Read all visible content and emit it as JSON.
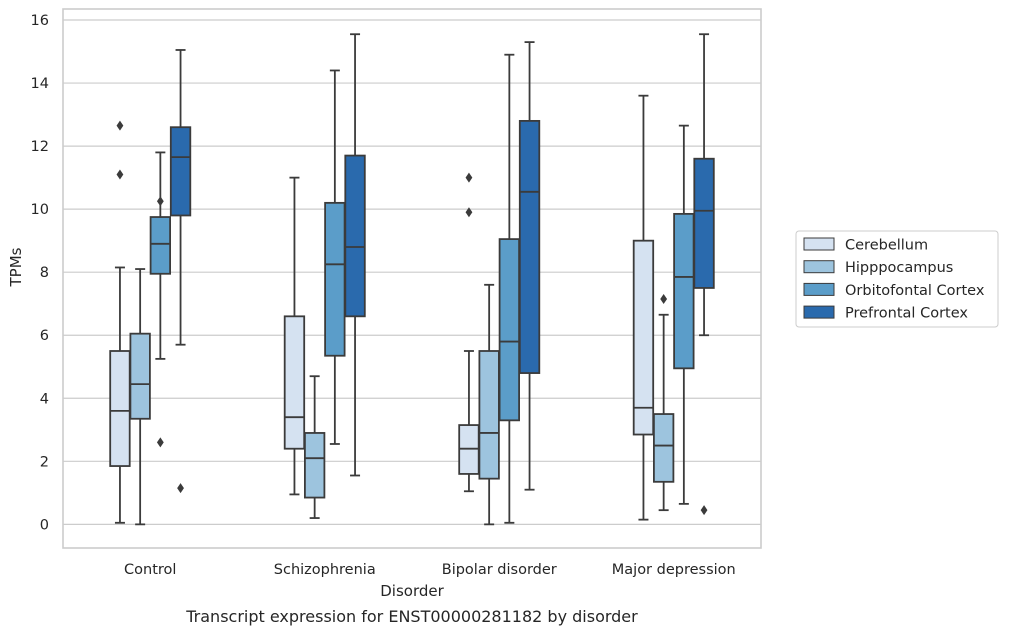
{
  "chart_data": {
    "type": "box",
    "title": "",
    "caption": "Transcript expression for ENST00000281182 by disorder",
    "xlabel": "Disorder",
    "ylabel": "TPMs",
    "ylim": [
      -0.75,
      16.35
    ],
    "yticks": [
      0,
      2,
      4,
      6,
      8,
      10,
      12,
      14,
      16
    ],
    "grid": "horizontal",
    "legend_position": "right",
    "categories": [
      "Control",
      "Schizophrenia",
      "Bipolar disorder",
      "Major depression"
    ],
    "series": [
      {
        "name": "Cerebellum",
        "color": "#d5e2f1",
        "boxes": [
          {
            "whisker_low": 0.05,
            "q1": 1.85,
            "median": 3.6,
            "q3": 5.5,
            "whisker_high": 8.15,
            "outliers": [
              11.1,
              12.65
            ]
          },
          {
            "whisker_low": 0.95,
            "q1": 2.4,
            "median": 3.4,
            "q3": 6.6,
            "whisker_high": 11.0,
            "outliers": []
          },
          {
            "whisker_low": 1.05,
            "q1": 1.6,
            "median": 2.4,
            "q3": 3.15,
            "whisker_high": 5.5,
            "outliers": [
              9.9,
              11.0
            ]
          },
          {
            "whisker_low": 0.15,
            "q1": 2.85,
            "median": 3.7,
            "q3": 9.0,
            "whisker_high": 13.6,
            "outliers": []
          }
        ]
      },
      {
        "name": "Hipppocampus",
        "color": "#9dc4de",
        "boxes": [
          {
            "whisker_low": 0.0,
            "q1": 3.35,
            "median": 4.45,
            "q3": 6.05,
            "whisker_high": 8.1,
            "outliers": []
          },
          {
            "whisker_low": 0.2,
            "q1": 0.85,
            "median": 2.1,
            "q3": 2.9,
            "whisker_high": 4.7,
            "outliers": []
          },
          {
            "whisker_low": 0.0,
            "q1": 1.45,
            "median": 2.9,
            "q3": 5.5,
            "whisker_high": 7.6,
            "outliers": []
          },
          {
            "whisker_low": 0.45,
            "q1": 1.35,
            "median": 2.5,
            "q3": 3.5,
            "whisker_high": 6.65,
            "outliers": [
              7.15
            ]
          }
        ]
      },
      {
        "name": "Orbitofontal Cortex",
        "color": "#5b9dc9",
        "boxes": [
          {
            "whisker_low": 5.25,
            "q1": 7.95,
            "median": 8.9,
            "q3": 9.75,
            "whisker_high": 11.8,
            "outliers": [
              2.6,
              10.25
            ]
          },
          {
            "whisker_low": 2.55,
            "q1": 5.35,
            "median": 8.25,
            "q3": 10.2,
            "whisker_high": 14.4,
            "outliers": []
          },
          {
            "whisker_low": 0.05,
            "q1": 3.3,
            "median": 5.8,
            "q3": 9.05,
            "whisker_high": 14.9,
            "outliers": []
          },
          {
            "whisker_low": 0.65,
            "q1": 4.95,
            "median": 7.85,
            "q3": 9.85,
            "whisker_high": 12.65,
            "outliers": []
          }
        ]
      },
      {
        "name": "Prefrontal Cortex",
        "color": "#2a6aad",
        "boxes": [
          {
            "whisker_low": 5.7,
            "q1": 9.8,
            "median": 11.65,
            "q3": 12.6,
            "whisker_high": 15.05,
            "outliers": [
              1.15
            ]
          },
          {
            "whisker_low": 1.55,
            "q1": 6.6,
            "median": 8.8,
            "q3": 11.7,
            "whisker_high": 15.55,
            "outliers": []
          },
          {
            "whisker_low": 1.1,
            "q1": 4.8,
            "median": 10.55,
            "q3": 12.8,
            "whisker_high": 15.3,
            "outliers": []
          },
          {
            "whisker_low": 6.0,
            "q1": 7.5,
            "median": 9.95,
            "q3": 11.6,
            "whisker_high": 15.55,
            "outliers": [
              0.45
            ]
          }
        ]
      }
    ]
  }
}
